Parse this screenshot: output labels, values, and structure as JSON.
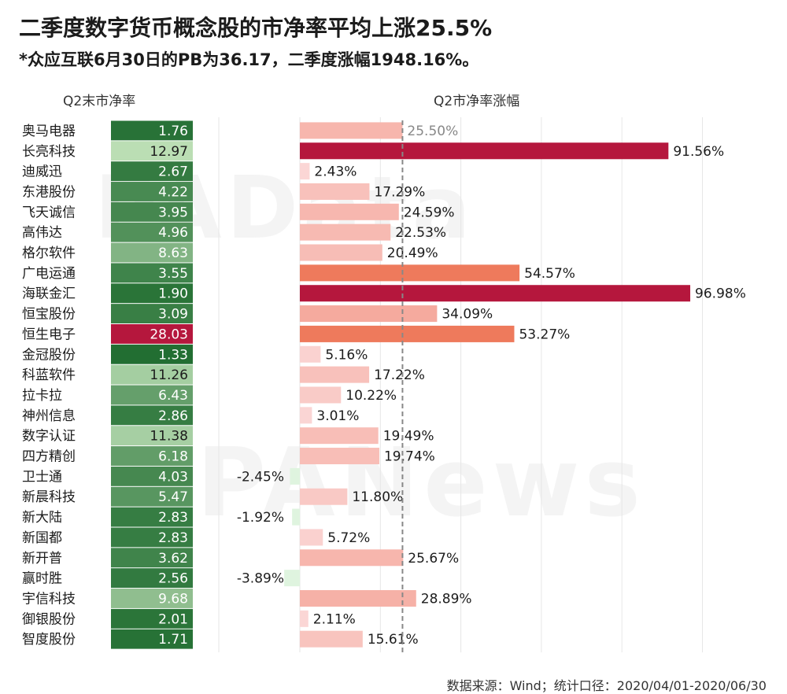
{
  "title": "二季度数字货币概念股的市净率平均上涨25.5%",
  "subtitle": "*众应互联6月30日的PB为36.17，二季度涨幅1948.16%。",
  "left_header": "Q2末市净率",
  "right_header": "Q2市净率涨幅",
  "source": "数据来源：Wind；统计口径：2020/04/01-2020/06/30",
  "watermarks": [
    "PAData",
    "PANews"
  ],
  "colors": {
    "pb_dark_green": "#1e6b2e",
    "pb_light_green": "#c8e8c0",
    "pb_red": "#b5173d",
    "bar_low": "#fbd9d9",
    "bar_mid": "#ee7a5c",
    "bar_high": "#b5173d",
    "bar_negative": "#dff4df",
    "avg_line": "#888888"
  },
  "chart_data": {
    "type": "bar",
    "orientation": "horizontal",
    "categories": [
      "奥马电器",
      "长亮科技",
      "迪威迅",
      "东港股份",
      "飞天诚信",
      "高伟达",
      "格尔软件",
      "广电运通",
      "海联金汇",
      "恒宝股份",
      "恒生电子",
      "金冠股份",
      "科蓝软件",
      "拉卡拉",
      "神州信息",
      "数字认证",
      "四方精创",
      "卫士通",
      "新晨科技",
      "新大陆",
      "新国都",
      "新开普",
      "赢时胜",
      "宇信科技",
      "御银股份",
      "智度股份"
    ],
    "series": [
      {
        "name": "Q2末市净率",
        "values": [
          1.76,
          12.97,
          2.67,
          4.22,
          3.95,
          4.96,
          8.63,
          3.55,
          1.9,
          3.09,
          28.03,
          1.33,
          11.26,
          6.43,
          2.86,
          11.38,
          6.18,
          4.03,
          5.47,
          2.83,
          2.83,
          3.62,
          2.56,
          9.68,
          2.01,
          1.71
        ]
      },
      {
        "name": "Q2市净率涨幅",
        "values": [
          25.5,
          91.56,
          2.43,
          17.29,
          24.59,
          22.53,
          20.49,
          54.57,
          96.98,
          34.09,
          53.27,
          5.16,
          17.22,
          10.22,
          3.01,
          19.49,
          19.74,
          -2.45,
          11.8,
          -1.92,
          5.72,
          25.67,
          -3.89,
          28.89,
          2.11,
          15.61
        ]
      }
    ],
    "pb_labels": [
      "1.76",
      "12.97",
      "2.67",
      "4.22",
      "3.95",
      "4.96",
      "8.63",
      "3.55",
      "1.90",
      "3.09",
      "28.03",
      "1.33",
      "11.26",
      "6.43",
      "2.86",
      "11.38",
      "6.18",
      "4.03",
      "5.47",
      "2.83",
      "2.83",
      "3.62",
      "2.56",
      "9.68",
      "2.01",
      "1.71"
    ],
    "change_labels": [
      "25.50%",
      "91.56%",
      "2.43%",
      "17.29%",
      "24.59%",
      "22.53%",
      "20.49%",
      "54.57%",
      "96.98%",
      "34.09%",
      "53.27%",
      "5.16%",
      "17.22%",
      "10.22%",
      "3.01%",
      "19.49%",
      "19.74%",
      "-2.45%",
      "11.80%",
      "-1.92%",
      "5.72%",
      "25.67%",
      "-3.89%",
      "28.89%",
      "2.11%",
      "15.61%"
    ],
    "reference_line": 25.5,
    "xlim": [
      0,
      100
    ],
    "grid": true
  }
}
